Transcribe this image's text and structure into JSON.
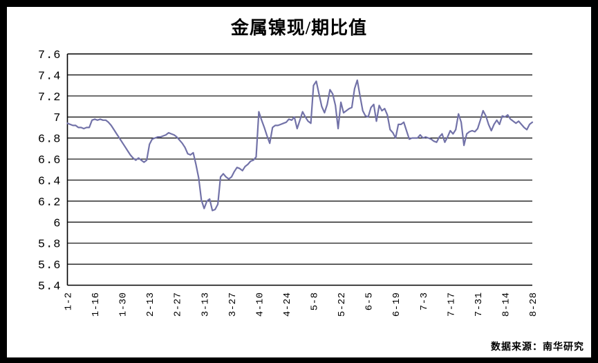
{
  "window": {
    "frame_color": "#000000",
    "panel_background": "#FFFFFF"
  },
  "chart": {
    "title": "金属镍现/期比值",
    "source_note": "数据来源：南华研究",
    "axis_color": "#000000",
    "line_color": "#7272A8"
  },
  "chart_data": {
    "type": "line",
    "title": "金属镍现/期比值",
    "xlabel": "",
    "ylabel": "",
    "legend": "none",
    "grid": "horizontal",
    "ylim": [
      5.4,
      7.6
    ],
    "y_step": 0.2,
    "y_tick_labels": [
      "7.6",
      "7.4",
      "7.2",
      "7",
      "6.8",
      "6.6",
      "6.4",
      "6.2",
      "6",
      "5.8",
      "5.6",
      "5.4"
    ],
    "x_tick_labels": [
      "1-2",
      "1-16",
      "1-30",
      "2-13",
      "2-27",
      "3-13",
      "3-27",
      "4-10",
      "4-24",
      "5-8",
      "5-22",
      "6-5",
      "6-19",
      "7-3",
      "7-17",
      "7-31",
      "8-14",
      "8-28"
    ],
    "points_per_tick_interval": 10,
    "values": [
      6.94,
      6.93,
      6.92,
      6.92,
      6.9,
      6.9,
      6.89,
      6.9,
      6.9,
      6.97,
      6.98,
      6.97,
      6.98,
      6.97,
      6.97,
      6.95,
      6.92,
      6.88,
      6.84,
      6.8,
      6.76,
      6.72,
      6.68,
      6.64,
      6.61,
      6.59,
      6.61,
      6.59,
      6.57,
      6.59,
      6.74,
      6.79,
      6.8,
      6.81,
      6.81,
      6.82,
      6.83,
      6.85,
      6.84,
      6.83,
      6.81,
      6.78,
      6.75,
      6.71,
      6.65,
      6.64,
      6.66,
      6.55,
      6.42,
      6.21,
      6.13,
      6.2,
      6.22,
      6.11,
      6.12,
      6.17,
      6.43,
      6.46,
      6.43,
      6.41,
      6.43,
      6.48,
      6.52,
      6.51,
      6.49,
      6.53,
      6.55,
      6.58,
      6.59,
      6.62,
      7.05,
      6.97,
      6.9,
      6.82,
      6.75,
      6.9,
      6.92,
      6.92,
      6.93,
      6.94,
      6.95,
      6.98,
      6.97,
      7.0,
      6.89,
      6.97,
      7.05,
      7.0,
      6.96,
      6.94,
      7.3,
      7.34,
      7.22,
      7.1,
      7.04,
      7.12,
      7.26,
      7.22,
      7.11,
      6.89,
      7.14,
      7.04,
      7.06,
      7.08,
      7.09,
      7.27,
      7.35,
      7.2,
      7.06,
      7.01,
      7.0,
      7.09,
      7.12,
      6.96,
      7.11,
      7.06,
      7.08,
      7.02,
      6.88,
      6.85,
      6.8,
      6.93,
      6.93,
      6.95,
      6.87,
      6.79,
      6.8,
      6.8,
      6.8,
      6.83,
      6.8,
      6.81,
      6.8,
      6.79,
      6.77,
      6.76,
      6.81,
      6.84,
      6.76,
      6.81,
      6.87,
      6.84,
      6.88,
      7.03,
      6.95,
      6.73,
      6.84,
      6.86,
      6.87,
      6.86,
      6.89,
      6.97,
      7.06,
      7.01,
      6.93,
      6.87,
      6.93,
      6.97,
      6.93,
      7.01,
      7.0,
      7.02,
      6.98,
      6.96,
      6.94,
      6.96,
      6.93,
      6.9,
      6.88,
      6.93,
      6.95
    ]
  }
}
